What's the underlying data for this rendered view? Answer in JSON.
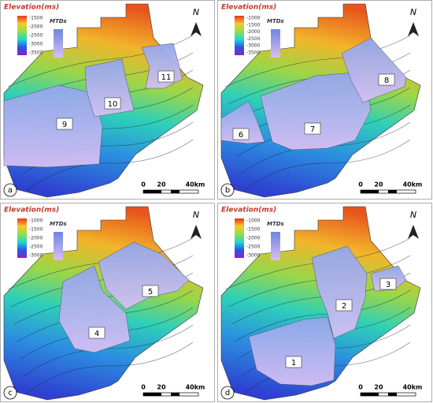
{
  "panels": [
    {
      "letter": "a",
      "legend_title": "Elevation(ms)",
      "colorbar_ticks": [
        "-1500",
        "-2000",
        "-2500",
        "-3000",
        "-3500"
      ],
      "mtd_legend": "MTDs",
      "north": "N",
      "scale": [
        "0",
        "20",
        "40km"
      ],
      "mtds": [
        "9",
        "10",
        "11"
      ]
    },
    {
      "letter": "b",
      "legend_title": "Elevation(ms)",
      "colorbar_ticks": [
        "-1000",
        "-1500",
        "-2000",
        "-2500",
        "-3000",
        "-3500"
      ],
      "mtd_legend": "MTDs",
      "north": "N",
      "scale": [
        "0",
        "20",
        "40km"
      ],
      "mtds": [
        "6",
        "7",
        "8"
      ]
    },
    {
      "letter": "c",
      "legend_title": "Elevation(ms)",
      "colorbar_ticks": [
        "-1000",
        "-1500",
        "-2000",
        "-2500",
        "-3000"
      ],
      "mtd_legend": "MTDs",
      "north": "N",
      "scale": [
        "0",
        "20",
        "40km"
      ],
      "mtds": [
        "4",
        "5"
      ]
    },
    {
      "letter": "d",
      "legend_title": "Elevation(ms)",
      "colorbar_ticks": [
        "-1000",
        "-1500",
        "-2000",
        "-2500",
        "-3000"
      ],
      "mtd_legend": "MTDs",
      "north": "N",
      "scale": [
        "0",
        "20",
        "40km"
      ],
      "mtds": [
        "1",
        "2",
        "3"
      ]
    }
  ]
}
